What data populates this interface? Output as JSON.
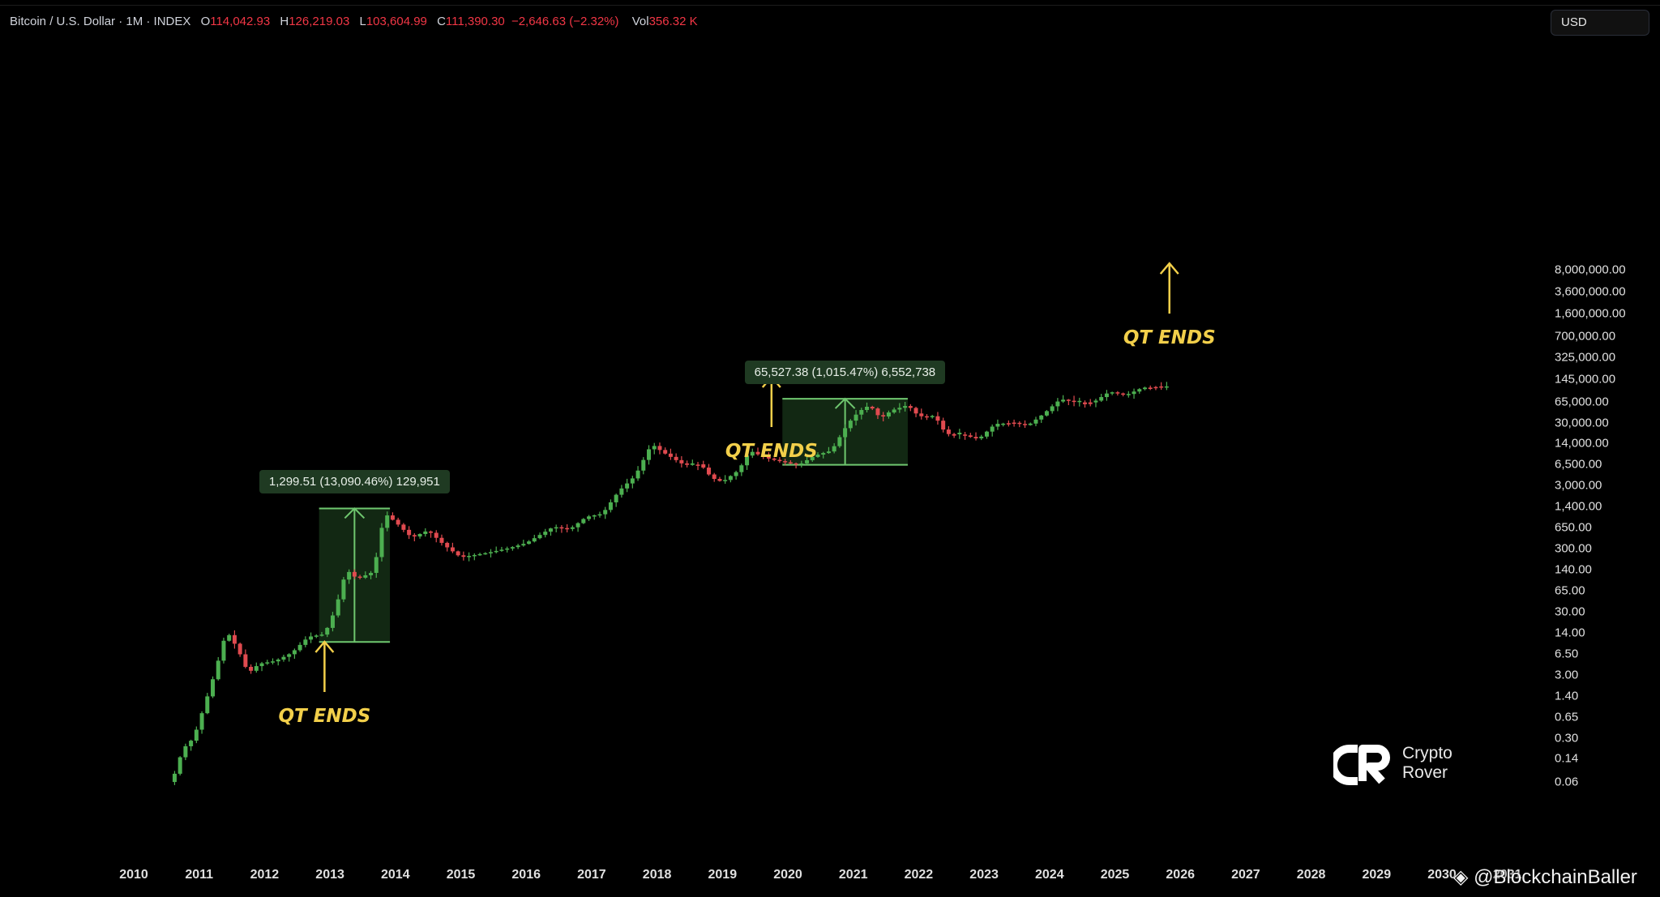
{
  "header": {
    "symbol": "Bitcoin / U.S. Dollar · 1M · INDEX",
    "open_label": "O",
    "open_value": "114,042.93",
    "high_label": "H",
    "high_value": "126,219.03",
    "low_label": "L",
    "low_value": "103,604.99",
    "close_label": "C",
    "close_value": "111,390.30",
    "change": "−2,646.63 (−2.32%)",
    "vol_label": "Vol",
    "vol_value": "356.32 K"
  },
  "currency": "USD",
  "colors": {
    "up": "#4caf50",
    "down": "#e04a4f",
    "annotation": "#f2cf4a",
    "measure_box": "#1f3a22",
    "background": "#000000"
  },
  "chart_data": {
    "type": "candlestick",
    "title": "Bitcoin / U.S. Dollar · 1M · INDEX",
    "y_scale": "log",
    "y_ticks": [
      "8,000,000.00",
      "3,600,000.00",
      "1,600,000.00",
      "700,000.00",
      "325,000.00",
      "145,000.00",
      "65,000.00",
      "30,000.00",
      "14,000.00",
      "6,500.00",
      "3,000.00",
      "1,400.00",
      "650.00",
      "300.00",
      "140.00",
      "65.00",
      "30.00",
      "14.00",
      "6.50",
      "3.00",
      "1.40",
      "0.65",
      "0.30",
      "0.14",
      "0.06"
    ],
    "x_ticks": [
      "2010",
      "2011",
      "2012",
      "2013",
      "2014",
      "2015",
      "2016",
      "2017",
      "2018",
      "2019",
      "2020",
      "2021",
      "2022",
      "2023",
      "2024",
      "2025",
      "2026",
      "2027",
      "2028",
      "2029",
      "2030",
      "2031"
    ],
    "price_path": [
      [
        "2010-08",
        0.06
      ],
      [
        "2010-10",
        0.2
      ],
      [
        "2010-12",
        0.3
      ],
      [
        "2011-02",
        1.0
      ],
      [
        "2011-04",
        3.5
      ],
      [
        "2011-06",
        15
      ],
      [
        "2011-08",
        8
      ],
      [
        "2011-10",
        3.2
      ],
      [
        "2011-12",
        4.5
      ],
      [
        "2012-03",
        5
      ],
      [
        "2012-06",
        6.7
      ],
      [
        "2012-09",
        12
      ],
      [
        "2012-12",
        13.3
      ],
      [
        "2013-02",
        33
      ],
      [
        "2013-04",
        140
      ],
      [
        "2013-06",
        100
      ],
      [
        "2013-09",
        130
      ],
      [
        "2013-11",
        1100
      ],
      [
        "2014-01",
        800
      ],
      [
        "2014-04",
        450
      ],
      [
        "2014-07",
        590
      ],
      [
        "2014-10",
        340
      ],
      [
        "2015-01",
        220
      ],
      [
        "2015-06",
        260
      ],
      [
        "2015-10",
        310
      ],
      [
        "2016-01",
        370
      ],
      [
        "2016-06",
        670
      ],
      [
        "2016-09",
        610
      ],
      [
        "2016-12",
        960
      ],
      [
        "2017-03",
        1080
      ],
      [
        "2017-06",
        2480
      ],
      [
        "2017-09",
        4300
      ],
      [
        "2017-12",
        13800
      ],
      [
        "2018-02",
        10300
      ],
      [
        "2018-06",
        6400
      ],
      [
        "2018-09",
        6600
      ],
      [
        "2018-11",
        4000
      ],
      [
        "2019-01",
        3450
      ],
      [
        "2019-04",
        5300
      ],
      [
        "2019-06",
        10800
      ],
      [
        "2019-09",
        8300
      ],
      [
        "2019-12",
        7200
      ],
      [
        "2020-03",
        6400
      ],
      [
        "2020-06",
        9100
      ],
      [
        "2020-09",
        10800
      ],
      [
        "2020-12",
        29000
      ],
      [
        "2021-02",
        45000
      ],
      [
        "2021-04",
        57000
      ],
      [
        "2021-06",
        35000
      ],
      [
        "2021-08",
        47000
      ],
      [
        "2021-11",
        57000
      ],
      [
        "2022-01",
        38000
      ],
      [
        "2022-04",
        38000
      ],
      [
        "2022-06",
        19900
      ],
      [
        "2022-09",
        19400
      ],
      [
        "2022-12",
        16500
      ],
      [
        "2023-03",
        28500
      ],
      [
        "2023-06",
        30500
      ],
      [
        "2023-09",
        27000
      ],
      [
        "2023-12",
        42000
      ],
      [
        "2024-03",
        71000
      ],
      [
        "2024-06",
        63000
      ],
      [
        "2024-09",
        63000
      ],
      [
        "2024-12",
        93000
      ],
      [
        "2025-03",
        82000
      ],
      [
        "2025-06",
        107000
      ],
      [
        "2025-09",
        114000
      ],
      [
        "2025-10",
        111390
      ]
    ],
    "annotations": [
      {
        "label": "QT ENDS",
        "date": "2012-12"
      },
      {
        "label": "QT ENDS",
        "date": "2019-10"
      },
      {
        "label": "QT ENDS",
        "date": "2025-11"
      }
    ],
    "measurements": [
      {
        "label": "1,299.51 (13,090.46%) 129,951",
        "from_date": "2012-11",
        "to_date": "2013-12",
        "from_price": 10,
        "to_price": 1310
      },
      {
        "label": "65,527.38 (1,015.47%) 6,552,738",
        "from_date": "2019-12",
        "to_date": "2021-11",
        "from_price": 6450,
        "to_price": 72000
      }
    ],
    "grid": false
  },
  "logo": {
    "line1": "Crypto",
    "line2": "Rover"
  },
  "watermark": "@BlockchainBaller"
}
